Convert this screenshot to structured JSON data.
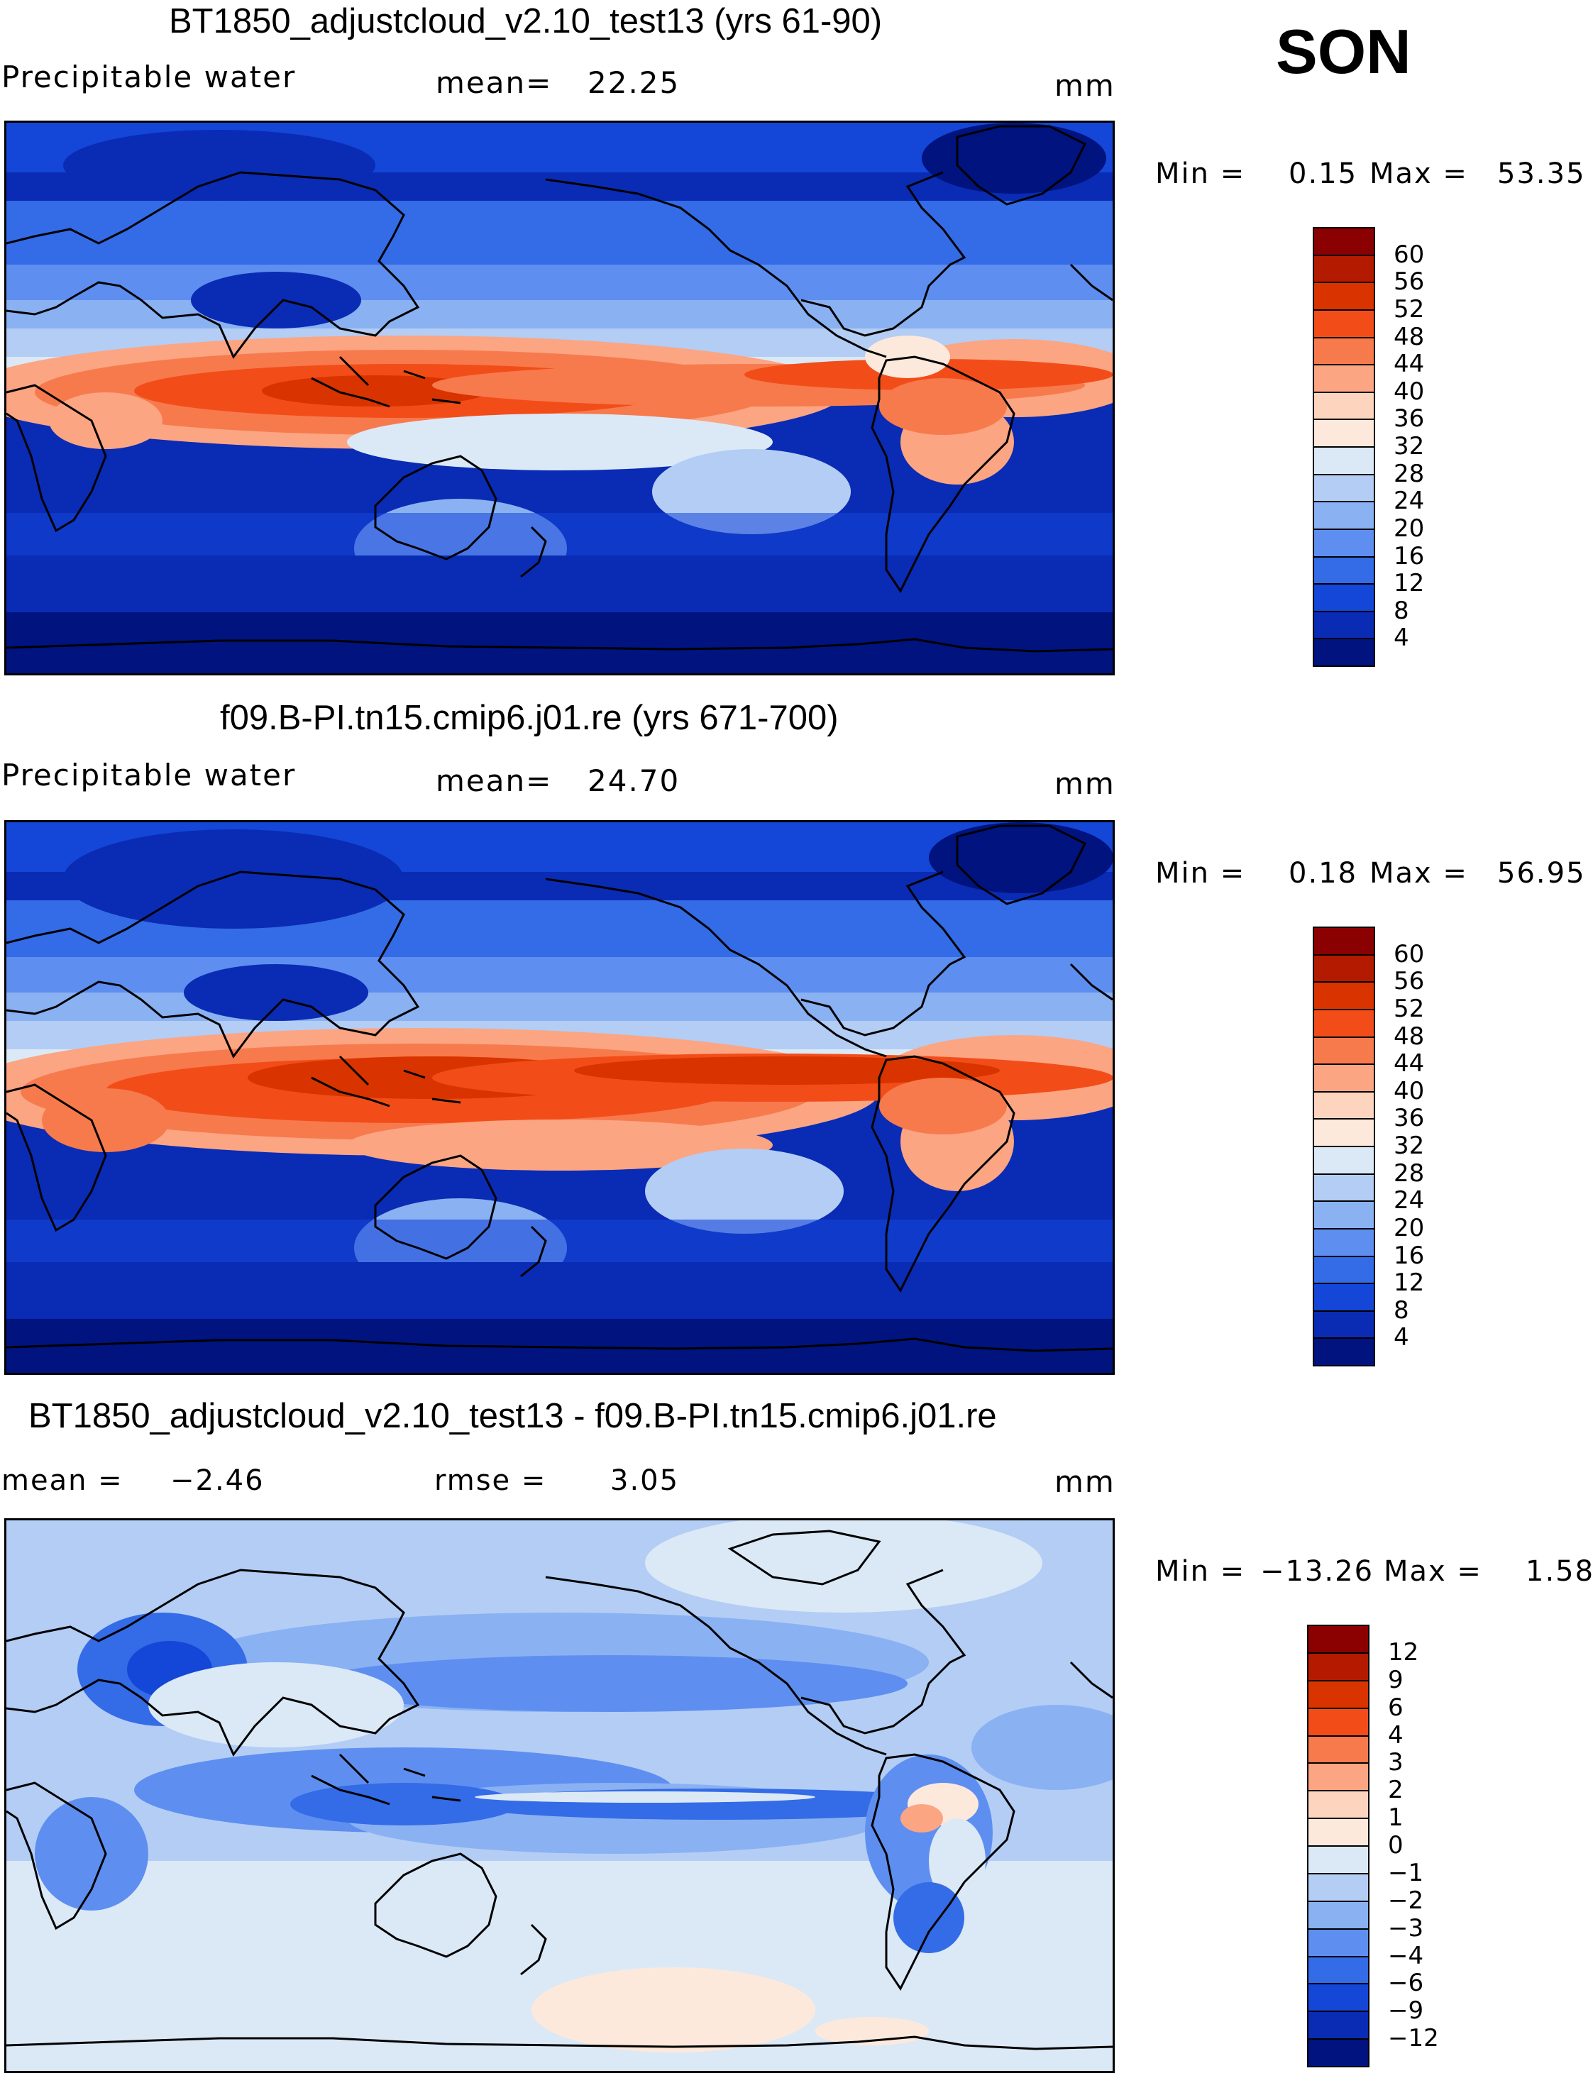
{
  "season": "SON",
  "panels": [
    {
      "title": "BT1850_adjustcloud_v2.10_test13 (yrs 61-90)",
      "left_label": "Precipitable water",
      "mid_label": "mean=",
      "mid_value": "22.25",
      "units": "mm",
      "min_label": "Min =",
      "min_value": "0.15",
      "max_label": "Max =",
      "max_value": "53.35",
      "colorbar": [
        "60",
        "56",
        "52",
        "48",
        "44",
        "40",
        "36",
        "32",
        "28",
        "24",
        "20",
        "16",
        "12",
        "8",
        "4"
      ]
    },
    {
      "title": "f09.B-PI.tn15.cmip6.j01.re (yrs 671-700)",
      "left_label": "Precipitable water",
      "mid_label": "mean=",
      "mid_value": "24.70",
      "units": "mm",
      "min_label": "Min =",
      "min_value": "0.18",
      "max_label": "Max =",
      "max_value": "56.95",
      "colorbar": [
        "60",
        "56",
        "52",
        "48",
        "44",
        "40",
        "36",
        "32",
        "28",
        "24",
        "20",
        "16",
        "12",
        "8",
        "4"
      ]
    },
    {
      "title": "BT1850_adjustcloud_v2.10_test13 - f09.B-PI.tn15.cmip6.j01.re",
      "left_label": "mean =",
      "left_value": "−2.46",
      "mid_label": "rmse =",
      "mid_value": "3.05",
      "units": "mm",
      "min_label": "Min =",
      "min_value": "−13.26",
      "max_label": "Max =",
      "max_value": "1.58",
      "colorbar": [
        "12",
        "9",
        "6",
        "4",
        "3",
        "2",
        "1",
        "0",
        "−1",
        "−2",
        "−3",
        "−4",
        "−6",
        "−9",
        "−12"
      ]
    }
  ],
  "colors": {
    "abs": [
      "#8b0000",
      "#b31a00",
      "#d93300",
      "#f24d19",
      "#f77a4d",
      "#fba583",
      "#fdd4bd",
      "#fde9dc",
      "#dbe9f7",
      "#b3cdf5",
      "#8ab1f2",
      "#5e8ff0",
      "#346be6",
      "#1446d8",
      "#0a2bb3",
      "#00137f"
    ],
    "diff": [
      "#8b0000",
      "#b31a00",
      "#d93300",
      "#f24d19",
      "#f77a4d",
      "#fba583",
      "#fdd4bd",
      "#fde9dc",
      "#dbe9f7",
      "#b3cdf5",
      "#8ab1f2",
      "#5e8ff0",
      "#346be6",
      "#1446d8",
      "#0a2bb3",
      "#00137f"
    ]
  }
}
